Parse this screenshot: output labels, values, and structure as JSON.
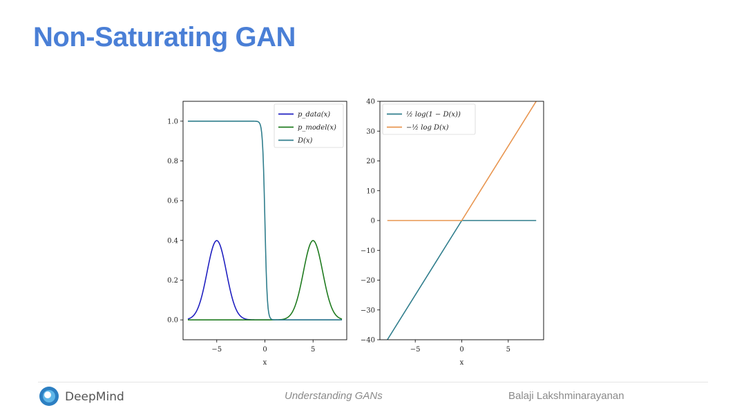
{
  "slide": {
    "title": "Non-Saturating GAN"
  },
  "footer": {
    "brand": "DeepMind",
    "talk": "Understanding GANs",
    "author": "Balaji Lakshminarayanan"
  },
  "colors": {
    "title": "#4a7fd6",
    "blue": "#1f1fc0",
    "green": "#1e7a1e",
    "teal": "#2f7d8c",
    "orange": "#e8954f"
  },
  "chart_data": [
    {
      "type": "line",
      "xlabel": "x",
      "xlim": [
        -8.5,
        8.5
      ],
      "ylim": [
        -0.1,
        1.1
      ],
      "xticks": [
        -5,
        0,
        5
      ],
      "yticks": [
        0.0,
        0.2,
        0.4,
        0.6,
        0.8,
        1.0
      ],
      "legend_position": "top-right",
      "series": [
        {
          "name": "p_data(x)",
          "kind": "gaussian",
          "mean": -5,
          "std": 1,
          "x_range": [
            -8,
            8
          ],
          "color": "#1f1fc0"
        },
        {
          "name": "p_model(x)",
          "kind": "gaussian",
          "mean": 5,
          "std": 1,
          "x_range": [
            -8,
            8
          ],
          "color": "#1e7a1e"
        },
        {
          "name": "D(x)",
          "kind": "sigmoid_step",
          "center": 0,
          "width": 0.12,
          "x_range": [
            -8,
            8
          ],
          "color": "#2f7d8c"
        }
      ]
    },
    {
      "type": "line",
      "xlabel": "x",
      "xlim": [
        -8.8,
        8.8
      ],
      "ylim": [
        -40,
        40
      ],
      "xticks": [
        -5,
        0,
        5
      ],
      "yticks": [
        -40,
        -30,
        -20,
        -10,
        0,
        10,
        20,
        30,
        40
      ],
      "legend_position": "top-left",
      "series": [
        {
          "name": "½ log(1 − D(x))",
          "x": [
            -8,
            0,
            8
          ],
          "y": [
            -40,
            0,
            0
          ],
          "color": "#2f7d8c"
        },
        {
          "name": "−½ log D(x)",
          "x": [
            -8,
            0,
            8
          ],
          "y": [
            0,
            0,
            40
          ],
          "color": "#e8954f"
        }
      ]
    }
  ]
}
